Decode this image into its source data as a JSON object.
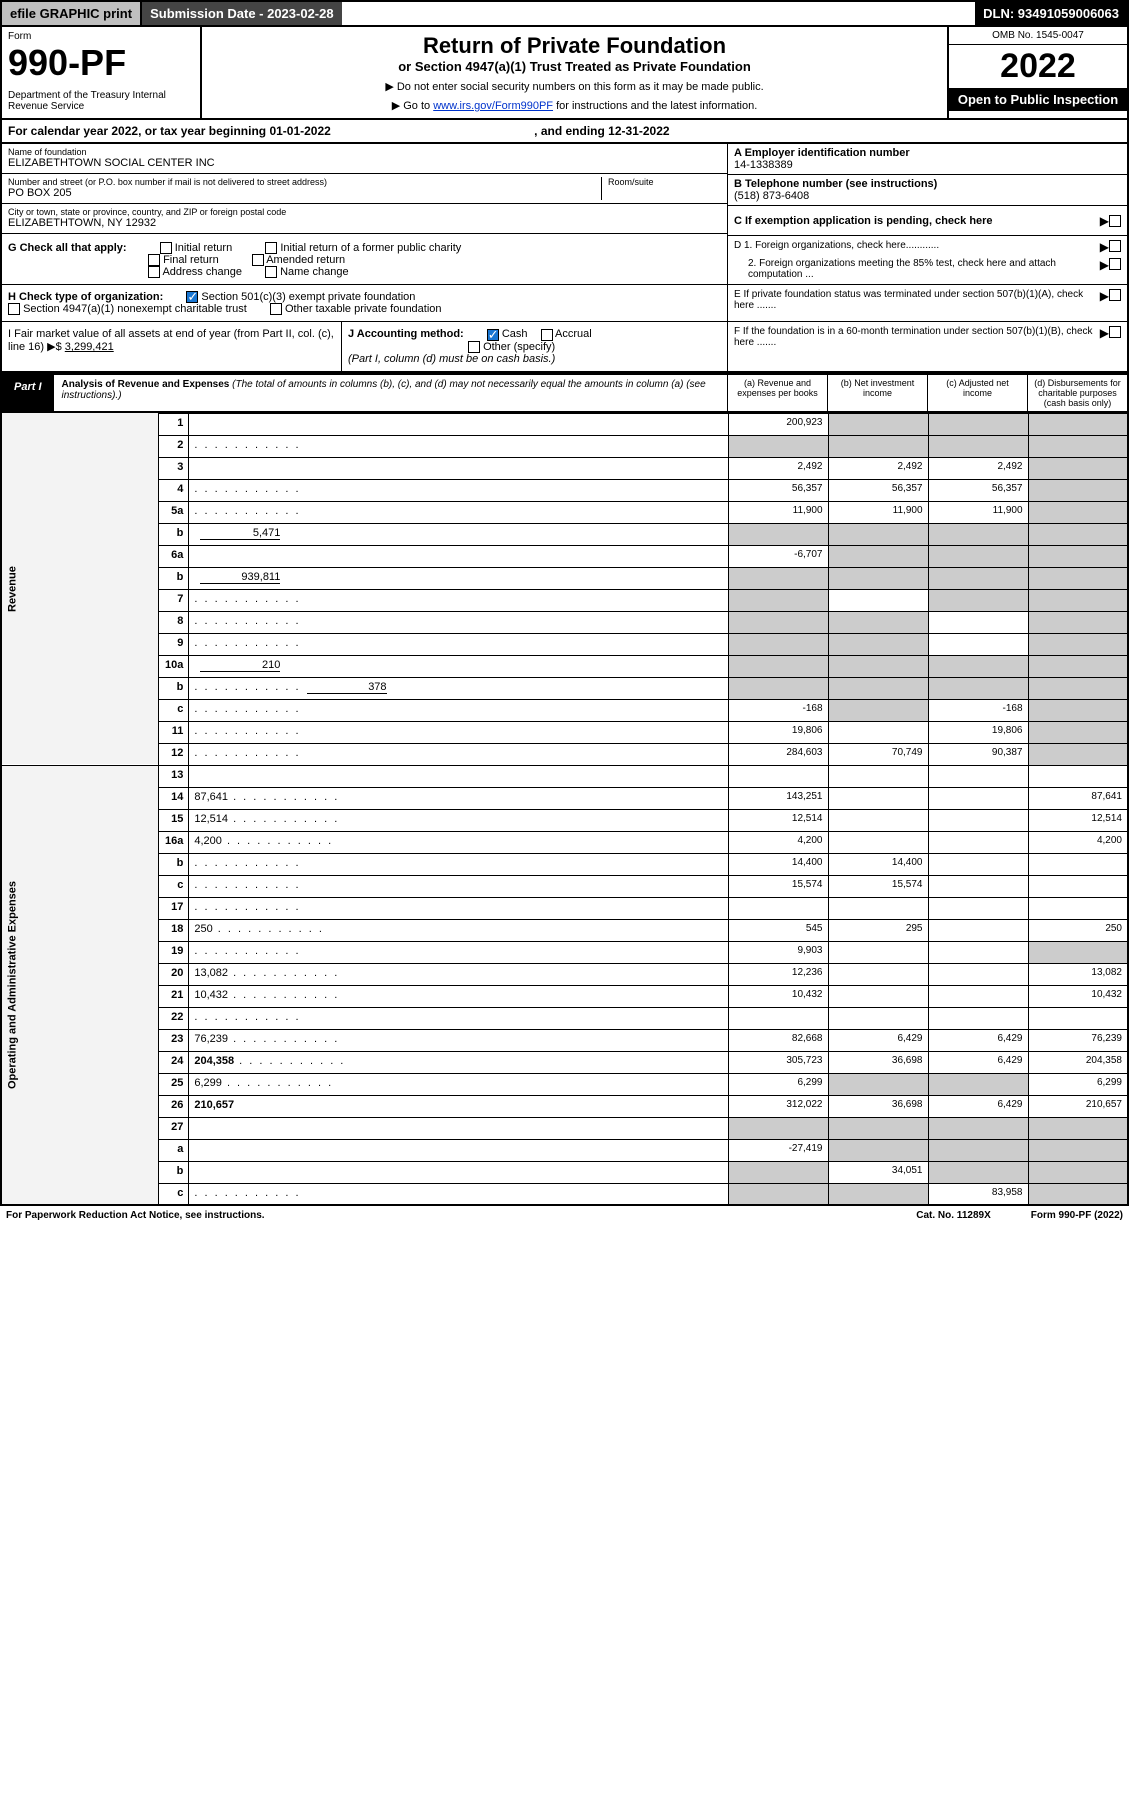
{
  "topbar": {
    "efile": "efile GRAPHIC print",
    "submission": "Submission Date - 2023-02-28",
    "dln": "DLN: 93491059006063"
  },
  "header": {
    "form_label": "Form",
    "form_no": "990-PF",
    "dept": "Department of the Treasury\nInternal Revenue Service",
    "title": "Return of Private Foundation",
    "subtitle": "or Section 4947(a)(1) Trust Treated as Private Foundation",
    "instr1": "▶ Do not enter social security numbers on this form as it may be made public.",
    "instr2_pre": "▶ Go to ",
    "instr2_link": "www.irs.gov/Form990PF",
    "instr2_post": " for instructions and the latest information.",
    "omb": "OMB No. 1545-0047",
    "year": "2022",
    "openpub": "Open to Public Inspection"
  },
  "calbar": {
    "pre": "For calendar year 2022, or tax year beginning 01-01-2022",
    "mid": ", and ending 12-31-2022"
  },
  "foundation": {
    "name_label": "Name of foundation",
    "name": "ELIZABETHTOWN SOCIAL CENTER INC",
    "addr_label": "Number and street (or P.O. box number if mail is not delivered to street address)",
    "addr": "PO BOX 205",
    "room_label": "Room/suite",
    "city_label": "City or town, state or province, country, and ZIP or foreign postal code",
    "city": "ELIZABETHTOWN, NY  12932",
    "a_label": "A Employer identification number",
    "a_val": "14-1338389",
    "b_label": "B Telephone number (see instructions)",
    "b_val": "(518) 873-6408",
    "c_label": "C If exemption application is pending, check here",
    "d1": "D 1. Foreign organizations, check here............",
    "d2": "2. Foreign organizations meeting the 85% test, check here and attach computation ...",
    "e": "E  If private foundation status was terminated under section 507(b)(1)(A), check here .......",
    "f": "F  If the foundation is in a 60-month termination under section 507(b)(1)(B), check here .......",
    "g_label": "G Check all that apply:",
    "g_opts": [
      "Initial return",
      "Initial return of a former public charity",
      "Final return",
      "Amended return",
      "Address change",
      "Name change"
    ],
    "h_label": "H Check type of organization:",
    "h_opt1": "Section 501(c)(3) exempt private foundation",
    "h_opt2": "Section 4947(a)(1) nonexempt charitable trust",
    "h_opt3": "Other taxable private foundation",
    "i_label": "I Fair market value of all assets at end of year (from Part II, col. (c), line 16) ▶$ ",
    "i_val": "3,299,421",
    "j_label": "J Accounting method:",
    "j_cash": "Cash",
    "j_acc": "Accrual",
    "j_other": "Other (specify)",
    "j_note": "(Part I, column (d) must be on cash basis.)"
  },
  "part1": {
    "tab": "Part I",
    "title": "Analysis of Revenue and Expenses",
    "note": "(The total of amounts in columns (b), (c), and (d) may not necessarily equal the amounts in column (a) (see instructions).)",
    "col_a": "(a)   Revenue and expenses per books",
    "col_b": "(b)   Net investment income",
    "col_c": "(c)   Adjusted net income",
    "col_d": "(d)   Disbursements for charitable purposes (cash basis only)"
  },
  "side_labels": {
    "rev": "Revenue",
    "ops": "Operating and Administrative Expenses"
  },
  "rows": [
    {
      "n": "1",
      "d": "",
      "a": "200,923",
      "b": "",
      "c": "",
      "bg": true,
      "cg": true,
      "dg": true
    },
    {
      "n": "2",
      "d": "",
      "a": "",
      "b": "",
      "c": "",
      "ag": true,
      "bg": true,
      "cg": true,
      "dg": true,
      "dot": true
    },
    {
      "n": "3",
      "d": "",
      "a": "2,492",
      "b": "2,492",
      "c": "2,492",
      "dg": true
    },
    {
      "n": "4",
      "d": "",
      "a": "56,357",
      "b": "56,357",
      "c": "56,357",
      "dg": true,
      "dot": true
    },
    {
      "n": "5a",
      "d": "",
      "a": "11,900",
      "b": "11,900",
      "c": "11,900",
      "dg": true,
      "dot": true
    },
    {
      "n": "b",
      "d": "",
      "inline": "5,471",
      "a": "",
      "b": "",
      "c": "",
      "ag": true,
      "bg": true,
      "cg": true,
      "dg": true
    },
    {
      "n": "6a",
      "d": "",
      "a": "-6,707",
      "b": "",
      "c": "",
      "bg": true,
      "cg": true,
      "dg": true
    },
    {
      "n": "b",
      "d": "",
      "inline": "939,811",
      "a": "",
      "b": "",
      "c": "",
      "ag": true,
      "bg": true,
      "cg": true,
      "dg": true
    },
    {
      "n": "7",
      "d": "",
      "a": "",
      "b": "",
      "c": "",
      "ag": true,
      "cg": true,
      "dg": true,
      "dot": true
    },
    {
      "n": "8",
      "d": "",
      "a": "",
      "b": "",
      "c": "",
      "ag": true,
      "bg": true,
      "dg": true,
      "dot": true
    },
    {
      "n": "9",
      "d": "",
      "a": "",
      "b": "",
      "c": "",
      "ag": true,
      "bg": true,
      "dg": true,
      "dot": true
    },
    {
      "n": "10a",
      "d": "",
      "inline": "210",
      "a": "",
      "b": "",
      "c": "",
      "ag": true,
      "bg": true,
      "cg": true,
      "dg": true
    },
    {
      "n": "b",
      "d": "",
      "inline": "378",
      "a": "",
      "b": "",
      "c": "",
      "ag": true,
      "bg": true,
      "cg": true,
      "dg": true,
      "dot": true
    },
    {
      "n": "c",
      "d": "",
      "a": "-168",
      "b": "",
      "c": "-168",
      "bg": true,
      "dg": true,
      "dot": true
    },
    {
      "n": "11",
      "d": "",
      "a": "19,806",
      "b": "",
      "c": "19,806",
      "dg": true,
      "dot": true
    },
    {
      "n": "12",
      "d": "",
      "a": "284,603",
      "b": "70,749",
      "c": "90,387",
      "dg": true,
      "bold": true,
      "dot": true
    },
    {
      "n": "13",
      "d": "",
      "a": "",
      "b": "",
      "c": ""
    },
    {
      "n": "14",
      "d": "87,641",
      "a": "143,251",
      "b": "",
      "c": "",
      "dot": true
    },
    {
      "n": "15",
      "d": "12,514",
      "a": "12,514",
      "b": "",
      "c": "",
      "dot": true
    },
    {
      "n": "16a",
      "d": "4,200",
      "a": "4,200",
      "b": "",
      "c": "",
      "dot": true
    },
    {
      "n": "b",
      "d": "",
      "a": "14,400",
      "b": "14,400",
      "c": "",
      "dot": true
    },
    {
      "n": "c",
      "d": "",
      "a": "15,574",
      "b": "15,574",
      "c": "",
      "dot": true
    },
    {
      "n": "17",
      "d": "",
      "a": "",
      "b": "",
      "c": "",
      "dot": true
    },
    {
      "n": "18",
      "d": "250",
      "a": "545",
      "b": "295",
      "c": "",
      "dot": true
    },
    {
      "n": "19",
      "d": "",
      "a": "9,903",
      "b": "",
      "c": "",
      "dg": true,
      "dot": true
    },
    {
      "n": "20",
      "d": "13,082",
      "a": "12,236",
      "b": "",
      "c": "",
      "dot": true
    },
    {
      "n": "21",
      "d": "10,432",
      "a": "10,432",
      "b": "",
      "c": "",
      "dot": true
    },
    {
      "n": "22",
      "d": "",
      "a": "",
      "b": "",
      "c": "",
      "dot": true
    },
    {
      "n": "23",
      "d": "76,239",
      "a": "82,668",
      "b": "6,429",
      "c": "6,429",
      "dot": true
    },
    {
      "n": "24",
      "d": "204,358",
      "a": "305,723",
      "b": "36,698",
      "c": "6,429",
      "bold": true,
      "dot": true
    },
    {
      "n": "25",
      "d": "6,299",
      "a": "6,299",
      "b": "",
      "c": "",
      "bg": true,
      "cg": true,
      "dot": true
    },
    {
      "n": "26",
      "d": "210,657",
      "a": "312,022",
      "b": "36,698",
      "c": "6,429",
      "bold": true
    },
    {
      "n": "27",
      "d": "",
      "a": "",
      "b": "",
      "c": "",
      "ag": true,
      "bg": true,
      "cg": true,
      "dg": true
    },
    {
      "n": "a",
      "d": "",
      "a": "-27,419",
      "b": "",
      "c": "",
      "bg": true,
      "cg": true,
      "dg": true,
      "bold": true
    },
    {
      "n": "b",
      "d": "",
      "a": "",
      "b": "34,051",
      "c": "",
      "ag": true,
      "cg": true,
      "dg": true,
      "bold": true
    },
    {
      "n": "c",
      "d": "",
      "a": "",
      "b": "",
      "c": "83,958",
      "ag": true,
      "bg": true,
      "dg": true,
      "bold": true,
      "dot": true
    }
  ],
  "footer": {
    "l": "For Paperwork Reduction Act Notice, see instructions.",
    "m": "Cat. No. 11289X",
    "r": "Form 990-PF (2022)"
  },
  "colors": {
    "link": "#0033cc",
    "grey": "#cccccc",
    "darkbar": "#444444",
    "btn": "#bfbfbf"
  }
}
